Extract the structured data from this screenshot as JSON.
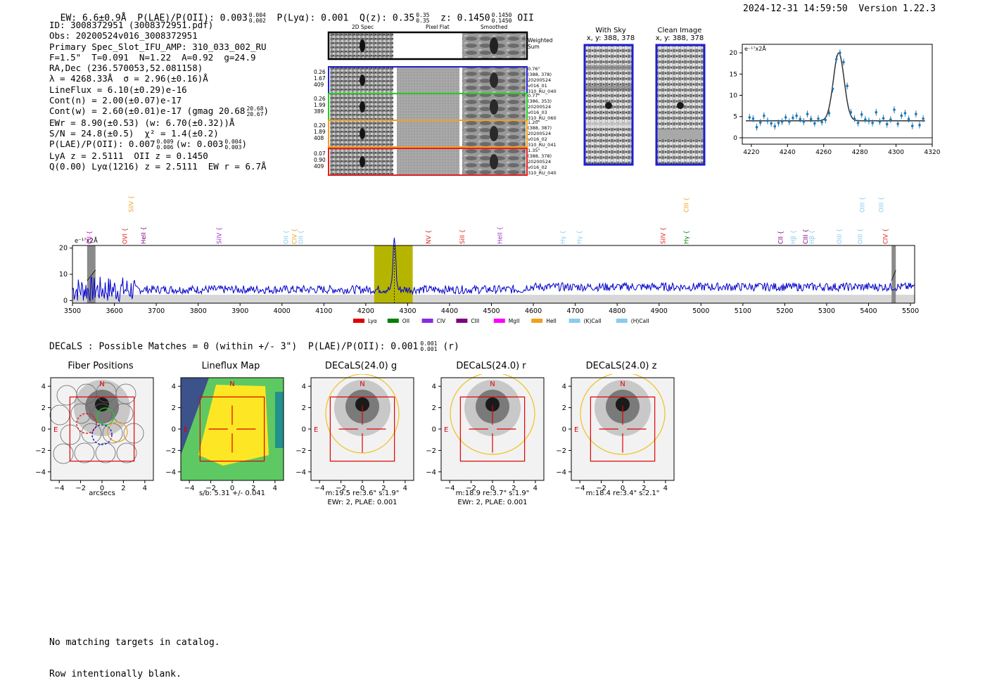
{
  "header": {
    "ew": "EW: 6.6±0.9Å",
    "plae_label": "P(LAE)/P(OII): 0.003",
    "plae_hi": "0.004",
    "plae_lo": "0.002",
    "plya": "P(Lyα): 0.001",
    "qz_label": "Q(z): 0.35",
    "qz_hi": "0.35",
    "qz_lo": "0.35",
    "z_label": "z: 0.1450",
    "z_hi": "0.1450",
    "z_lo": "0.1450",
    "z_line": "OII",
    "timestamp": "2024-12-31 14:59:50",
    "version": "Version 1.22.3"
  },
  "info": {
    "lines": [
      "ID: 3008372951 (3008372951.pdf)",
      "Obs: 20200524v016_3008372951",
      "Primary Spec_Slot_IFU_AMP: 310_033_002_RU",
      "F=1.5\"  T=0.091  N=1.22  A=0.92  g=24.9",
      "RA,Dec (236.570053,52.081158)",
      "λ = 4268.33Å  σ = 2.96(±0.16)Å",
      "LineFlux = 6.10(±0.29)e-16",
      "Cont(n) = 2.00(±0.07)e-17",
      "Cont(w) = 2.60(±0.01)e-17 (gmag 20.68",
      "EWr = 8.90(±0.53) (w: 6.70(±0.32))Å",
      "S/N = 24.8(±0.5)  χ² = 1.4(±0.2)",
      "P(LAE)/P(OII): 0.007",
      "LyA z = 2.5111  OII z = 0.1450",
      "Q(0.00) Lyα(1216) z = 2.5111  EW r = 6.7Å"
    ],
    "gmag_hi": "20.68",
    "gmag_lo": "20.67",
    "gmag_close": ")",
    "plae_hi": "0.009",
    "plae_lo": "0.006",
    "plae_w": "(w: 0.003",
    "plae_w_hi": "0.004",
    "plae_w_lo": "0.003",
    "plae_close": ")"
  },
  "cutouts": {
    "col_titles": [
      "2D Spec",
      "Pixel Flat",
      "Smoothed"
    ],
    "weighted_sum": "Weighted\nSum",
    "rows": [
      {
        "left": "0.26\n1.67\n409",
        "right": "0.76\"\n(388, 378)\n20200524\nv016_01\n310_RU_040",
        "color": "#1f1fcc"
      },
      {
        "left": "0.26\n1.99\n389",
        "right": "0.77\"\n(386, 353)\n20200524\nv016_03\n310_RU_060",
        "color": "#22cc22"
      },
      {
        "left": "0.20\n1.89\n408",
        "right": "1.20\"\n(388, 387)\n20200524\nv016_02\n310_RU_041",
        "color": "#f0a020"
      },
      {
        "left": "0.07\n0.90\n409",
        "right": "1.35\"\n(388, 378)\n20200524\nv016_02\n310_RU_040",
        "color": "#e02020"
      }
    ],
    "with_sky_title": "With Sky",
    "with_sky_xy": "x, y: 388, 378",
    "clean_title": "Clean Image",
    "clean_xy": "x, y: 388, 378"
  },
  "colors": {
    "spectrum": "#0000cc",
    "highlight": "#b5b500",
    "fit_points": "#1f77b4",
    "box": "#e00000",
    "ellipse": "#f0c020"
  },
  "chart_data": [
    {
      "type": "scatter",
      "name": "line-fit-zoom",
      "units_label": "e⁻¹⁷x2Å",
      "xlim": [
        4215,
        4320
      ],
      "ylim": [
        -1.5,
        22
      ],
      "xticks": [
        4220,
        4240,
        4260,
        4280,
        4300,
        4320
      ],
      "yticks": [
        0,
        5,
        10,
        15,
        20
      ],
      "x": [
        4219,
        4221,
        4223,
        4225,
        4227,
        4229,
        4231,
        4233,
        4235,
        4237,
        4239,
        4241,
        4243,
        4245,
        4247,
        4249,
        4251,
        4253,
        4255,
        4257,
        4259,
        4261,
        4263,
        4265,
        4267,
        4269,
        4271,
        4273,
        4275,
        4277,
        4279,
        4281,
        4283,
        4285,
        4287,
        4289,
        4291,
        4293,
        4295,
        4297,
        4299,
        4301,
        4303,
        4305,
        4307,
        4309,
        4311,
        4313,
        4315
      ],
      "values": [
        4.8,
        4.5,
        2.5,
        3.6,
        5.2,
        4.0,
        3.4,
        2.7,
        3.5,
        3.8,
        4.8,
        3.8,
        4.7,
        5.2,
        4.4,
        3.8,
        5.6,
        4.4,
        3.4,
        4.5,
        3.7,
        4.2,
        5.8,
        11.5,
        18.5,
        20.0,
        17.8,
        12.2,
        6.0,
        4.5,
        3.5,
        5.5,
        4.3,
        4.0,
        3.5,
        6.0,
        3.8,
        4.6,
        3.2,
        4.3,
        6.6,
        3.3,
        5.2,
        5.8,
        4.4,
        2.8,
        5.6,
        3.0,
        4.5
      ],
      "fit": {
        "center": 4268.33,
        "sigma": 2.96,
        "amplitude": 16.0,
        "continuum": 4.0
      }
    },
    {
      "type": "line",
      "name": "full-spectrum",
      "units_label": "e⁻¹⁷x2Å",
      "xlim": [
        3500,
        5510
      ],
      "ylim": [
        -1,
        21
      ],
      "xticks": [
        3500,
        3600,
        3700,
        3800,
        3900,
        4000,
        4100,
        4200,
        4300,
        4400,
        4500,
        4600,
        4700,
        4800,
        4900,
        5000,
        5100,
        5200,
        5300,
        5400,
        5500
      ],
      "yticks": [
        0,
        10,
        20
      ],
      "highlight_range": [
        4220,
        4312
      ],
      "masked_ranges": [
        [
          3535,
          3555
        ],
        [
          5455,
          5465
        ]
      ],
      "line_center": 4268.33,
      "line_peak": 20.0,
      "continuum": 4.2,
      "emission_lines": [
        {
          "name": "CII",
          "wave": 3540,
          "color": "#cc00cc",
          "row": "low"
        },
        {
          "name": "SiIV",
          "wave": 3640,
          "color": "#f0a020",
          "row": "high"
        },
        {
          "name": "OVI",
          "wave": 3625,
          "color": "#e02020",
          "row": "low"
        },
        {
          "name": "HeII",
          "wave": 3670,
          "color": "#800080",
          "row": "low"
        },
        {
          "name": "SiIV",
          "wave": 3850,
          "color": "#9933cc",
          "row": "low"
        },
        {
          "name": "OII",
          "wave": 4010,
          "color": "#88ccee",
          "row": "low"
        },
        {
          "name": "CIV",
          "wave": 4030,
          "color": "#f0a020",
          "row": "low"
        },
        {
          "name": "OII",
          "wave": 4045,
          "color": "#88ccee",
          "row": "low"
        },
        {
          "name": "NV",
          "wave": 4350,
          "color": "#e02020",
          "row": "low"
        },
        {
          "name": "SiII",
          "wave": 4430,
          "color": "#e02020",
          "row": "low"
        },
        {
          "name": "HeII",
          "wave": 4520,
          "color": "#9933cc",
          "row": "low"
        },
        {
          "name": "Hγ",
          "wave": 4670,
          "color": "#88ccee",
          "row": "low"
        },
        {
          "name": "Hγ",
          "wave": 4710,
          "color": "#88ccee",
          "row": "low"
        },
        {
          "name": "SiIV",
          "wave": 4910,
          "color": "#e02020",
          "row": "low"
        },
        {
          "name": "CIII",
          "wave": 4965,
          "color": "#f0a020",
          "row": "high"
        },
        {
          "name": "Hγ",
          "wave": 4965,
          "color": "#008000",
          "row": "low"
        },
        {
          "name": "CII",
          "wave": 5190,
          "color": "#800080",
          "row": "low"
        },
        {
          "name": "Hβ",
          "wave": 5220,
          "color": "#88ccee",
          "row": "low"
        },
        {
          "name": "CIII",
          "wave": 5250,
          "color": "#800080",
          "row": "low"
        },
        {
          "name": "Hβ",
          "wave": 5265,
          "color": "#88ccee",
          "row": "low"
        },
        {
          "name": "OIII",
          "wave": 5330,
          "color": "#88ccee",
          "row": "low"
        },
        {
          "name": "OIII",
          "wave": 5380,
          "color": "#88ccee",
          "row": "low"
        },
        {
          "name": "OIII",
          "wave": 5385,
          "color": "#88ccee",
          "row": "high"
        },
        {
          "name": "OIII",
          "wave": 5430,
          "color": "#88ccee",
          "row": "high"
        },
        {
          "name": "CIV",
          "wave": 5440,
          "color": "#e02020",
          "row": "low"
        }
      ],
      "legend": [
        {
          "label": "Lyα",
          "color": "#e00000"
        },
        {
          "label": "OII",
          "color": "#008000"
        },
        {
          "label": "CIV",
          "color": "#8a2be2"
        },
        {
          "label": "CIII",
          "color": "#800080"
        },
        {
          "label": "MgII",
          "color": "#ff00ff"
        },
        {
          "label": "HeII",
          "color": "#f0a020"
        },
        {
          "label": "(K)CaII",
          "color": "#88ccee"
        },
        {
          "label": "(H)CaII",
          "color": "#88ccee"
        }
      ]
    }
  ],
  "decals": {
    "summary": "DECaLS : Possible Matches = 0 (within +/- 3\")  P(LAE)/P(OII): 0.001",
    "summary_hi": "0.001",
    "summary_lo": "0.001",
    "summary_band": "(r)",
    "ticks": [
      "−4",
      "−2",
      "0",
      "2",
      "4"
    ],
    "yticks": [
      "4",
      "2",
      "0",
      "−2",
      "−4"
    ],
    "north": "N",
    "east": "E",
    "panels": [
      {
        "title": "Fiber Positions",
        "xlabel": "arcsecs",
        "sub": ""
      },
      {
        "title": "Lineflux Map",
        "xlabel": "s/b: 5.31 +/- 0.041",
        "sub": ""
      },
      {
        "title": "DECaLS(24.0) g",
        "xlabel": "m:19.5  re:3.6\"  s:1.9\"",
        "sub": "EWr: 2, PLAE: 0.001"
      },
      {
        "title": "DECaLS(24.0) r",
        "xlabel": "m:18.9  re:3.7\"  s:1.9\"",
        "sub": "EWr: 2, PLAE: 0.001"
      },
      {
        "title": "DECaLS(24.0) z",
        "xlabel": "m:18.4  re:3.4\"  s:2.1\"",
        "sub": ""
      }
    ]
  },
  "footer": {
    "line1": "No matching targets in catalog.",
    "line2": "Row intentionally blank."
  }
}
